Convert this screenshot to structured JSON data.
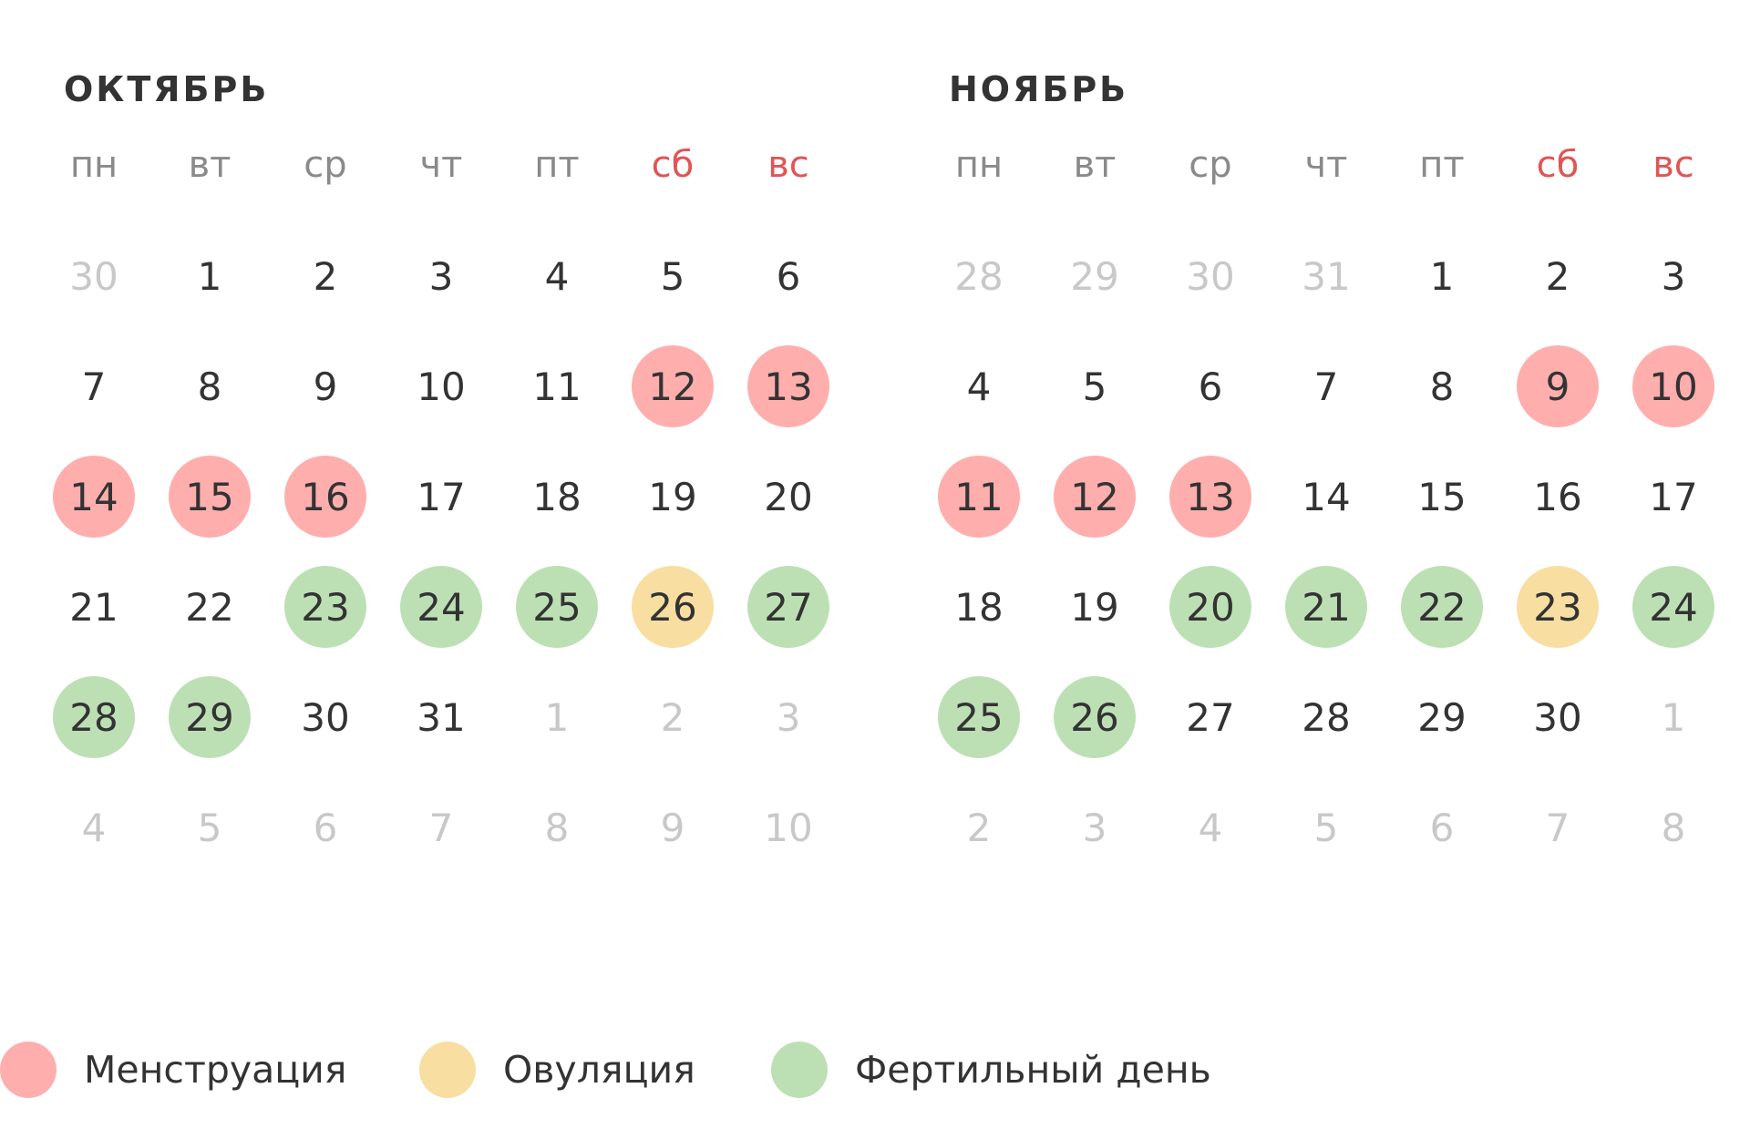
{
  "colors": {
    "menstruation": "#ffaeae",
    "ovulation": "#f8dea0",
    "fertile": "#bce0b4",
    "weekend_label": "#e05555",
    "outside_day": "#c8c8c8",
    "text": "#333333"
  },
  "weekdays": [
    {
      "label": "пн",
      "weekend": false
    },
    {
      "label": "вт",
      "weekend": false
    },
    {
      "label": "ср",
      "weekend": false
    },
    {
      "label": "чт",
      "weekend": false
    },
    {
      "label": "пт",
      "weekend": false
    },
    {
      "label": "сб",
      "weekend": true
    },
    {
      "label": "вс",
      "weekend": true
    }
  ],
  "months": [
    {
      "title": "Октябрь",
      "weeks": [
        [
          {
            "d": "30",
            "s": "outside"
          },
          {
            "d": "1"
          },
          {
            "d": "2"
          },
          {
            "d": "3"
          },
          {
            "d": "4"
          },
          {
            "d": "5"
          },
          {
            "d": "6"
          }
        ],
        [
          {
            "d": "7"
          },
          {
            "d": "8"
          },
          {
            "d": "9"
          },
          {
            "d": "10"
          },
          {
            "d": "11"
          },
          {
            "d": "12",
            "s": "menstruation"
          },
          {
            "d": "13",
            "s": "menstruation"
          }
        ],
        [
          {
            "d": "14",
            "s": "menstruation"
          },
          {
            "d": "15",
            "s": "menstruation"
          },
          {
            "d": "16",
            "s": "menstruation"
          },
          {
            "d": "17"
          },
          {
            "d": "18"
          },
          {
            "d": "19"
          },
          {
            "d": "20"
          }
        ],
        [
          {
            "d": "21"
          },
          {
            "d": "22"
          },
          {
            "d": "23",
            "s": "fertile"
          },
          {
            "d": "24",
            "s": "fertile"
          },
          {
            "d": "25",
            "s": "fertile"
          },
          {
            "d": "26",
            "s": "ovulation"
          },
          {
            "d": "27",
            "s": "fertile"
          }
        ],
        [
          {
            "d": "28",
            "s": "fertile"
          },
          {
            "d": "29",
            "s": "fertile"
          },
          {
            "d": "30"
          },
          {
            "d": "31"
          },
          {
            "d": "1",
            "s": "outside"
          },
          {
            "d": "2",
            "s": "outside"
          },
          {
            "d": "3",
            "s": "outside"
          }
        ],
        [
          {
            "d": "4",
            "s": "outside"
          },
          {
            "d": "5",
            "s": "outside"
          },
          {
            "d": "6",
            "s": "outside"
          },
          {
            "d": "7",
            "s": "outside"
          },
          {
            "d": "8",
            "s": "outside"
          },
          {
            "d": "9",
            "s": "outside"
          },
          {
            "d": "10",
            "s": "outside"
          }
        ]
      ]
    },
    {
      "title": "Ноябрь",
      "weeks": [
        [
          {
            "d": "28",
            "s": "outside"
          },
          {
            "d": "29",
            "s": "outside"
          },
          {
            "d": "30",
            "s": "outside"
          },
          {
            "d": "31",
            "s": "outside"
          },
          {
            "d": "1"
          },
          {
            "d": "2"
          },
          {
            "d": "3"
          }
        ],
        [
          {
            "d": "4"
          },
          {
            "d": "5"
          },
          {
            "d": "6"
          },
          {
            "d": "7"
          },
          {
            "d": "8"
          },
          {
            "d": "9",
            "s": "menstruation"
          },
          {
            "d": "10",
            "s": "menstruation"
          }
        ],
        [
          {
            "d": "11",
            "s": "menstruation"
          },
          {
            "d": "12",
            "s": "menstruation"
          },
          {
            "d": "13",
            "s": "menstruation"
          },
          {
            "d": "14"
          },
          {
            "d": "15"
          },
          {
            "d": "16"
          },
          {
            "d": "17"
          }
        ],
        [
          {
            "d": "18"
          },
          {
            "d": "19"
          },
          {
            "d": "20",
            "s": "fertile"
          },
          {
            "d": "21",
            "s": "fertile"
          },
          {
            "d": "22",
            "s": "fertile"
          },
          {
            "d": "23",
            "s": "ovulation"
          },
          {
            "d": "24",
            "s": "fertile"
          }
        ],
        [
          {
            "d": "25",
            "s": "fertile"
          },
          {
            "d": "26",
            "s": "fertile"
          },
          {
            "d": "27"
          },
          {
            "d": "28"
          },
          {
            "d": "29"
          },
          {
            "d": "30"
          },
          {
            "d": "1",
            "s": "outside"
          }
        ],
        [
          {
            "d": "2",
            "s": "outside"
          },
          {
            "d": "3",
            "s": "outside"
          },
          {
            "d": "4",
            "s": "outside"
          },
          {
            "d": "5",
            "s": "outside"
          },
          {
            "d": "6",
            "s": "outside"
          },
          {
            "d": "7",
            "s": "outside"
          },
          {
            "d": "8",
            "s": "outside"
          }
        ]
      ]
    }
  ],
  "legend": [
    {
      "label": "Менструация",
      "type": "menstruation"
    },
    {
      "label": "Овуляция",
      "type": "ovulation"
    },
    {
      "label": "Фертильный день",
      "type": "fertile"
    }
  ]
}
